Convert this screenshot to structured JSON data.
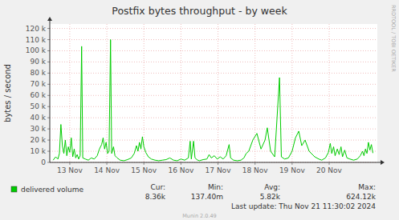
{
  "chart_data": {
    "type": "line",
    "title": "Postfix bytes throughput - by week",
    "y_label": "bytes / second",
    "x": [
      13.05,
      13.12,
      13.18,
      13.22,
      13.26,
      13.3,
      13.34,
      13.38,
      13.42,
      13.46,
      13.5,
      13.54,
      13.58,
      13.62,
      13.66,
      13.7,
      13.74,
      13.78,
      13.82,
      13.85,
      13.92,
      14.0,
      14.08,
      14.16,
      14.24,
      14.3,
      14.36,
      14.4,
      14.44,
      14.48,
      14.52,
      14.56,
      14.6,
      14.63,
      14.68,
      14.72,
      14.78,
      14.86,
      14.96,
      15.06,
      15.16,
      15.24,
      15.3,
      15.34,
      15.38,
      15.42,
      15.46,
      15.5,
      15.55,
      15.62,
      15.7,
      15.8,
      15.9,
      16.0,
      16.1,
      16.2,
      16.3,
      16.4,
      16.5,
      16.6,
      16.7,
      16.75,
      16.78,
      16.84,
      16.88,
      16.95,
      17.0,
      17.1,
      17.2,
      17.26,
      17.32,
      17.4,
      17.48,
      17.56,
      17.64,
      17.72,
      17.8,
      17.84,
      17.92,
      18.02,
      18.12,
      18.2,
      18.26,
      18.33,
      18.44,
      18.55,
      18.66,
      18.77,
      18.83,
      18.92,
      19.03,
      19.16,
      19.21,
      19.3,
      19.4,
      19.5,
      19.59,
      19.68,
      19.76,
      19.85,
      19.96,
      20.11,
      20.22,
      20.3,
      20.4,
      20.48,
      20.53,
      20.57,
      20.62,
      20.66,
      20.72,
      20.77,
      20.82,
      20.86,
      20.92,
      20.98,
      21.06,
      21.16,
      21.26,
      21.34,
      21.4,
      21.44,
      21.48,
      21.52,
      21.56,
      21.6,
      21.64,
      21.68
    ],
    "series": [
      {
        "name": "delivered volume",
        "color": "#00cc00",
        "values": [
          2000,
          5000,
          3000,
          8000,
          34000,
          15000,
          8000,
          20000,
          6000,
          14000,
          9000,
          22000,
          5000,
          12000,
          4000,
          7000,
          3000,
          6000,
          104000,
          4000,
          3000,
          2000,
          4000,
          3000,
          6000,
          12000,
          16000,
          22000,
          12000,
          18000,
          8000,
          10000,
          110000,
          8000,
          14000,
          6000,
          4000,
          2000,
          1500,
          2500,
          4000,
          8000,
          15000,
          10000,
          18000,
          12000,
          23000,
          14000,
          9000,
          5000,
          3000,
          2000,
          1500,
          2000,
          2500,
          4000,
          2000,
          1500,
          3000,
          2000,
          4000,
          19000,
          3000,
          19000,
          4000,
          2000,
          1500,
          2500,
          3000,
          7000,
          4000,
          6000,
          3000,
          5000,
          3000,
          6000,
          16000,
          4000,
          2000,
          1500,
          2000,
          4000,
          8000,
          10000,
          20000,
          26000,
          12000,
          20000,
          31000,
          10000,
          5000,
          76000,
          5000,
          3000,
          4000,
          10000,
          22000,
          28000,
          15000,
          20000,
          10000,
          5000,
          3000,
          2000,
          4000,
          9000,
          17000,
          8000,
          14000,
          6000,
          12000,
          7000,
          14000,
          5000,
          11000,
          4000,
          3000,
          2000,
          3000,
          6000,
          10000,
          6000,
          12000,
          8000,
          18000,
          11000,
          16000,
          8360
        ]
      }
    ],
    "xlim": [
      12.96,
      21.8
    ],
    "ylim": [
      0,
      124000
    ],
    "xticks": [
      {
        "value": 13.5,
        "label": "13 Nov"
      },
      {
        "value": 14.5,
        "label": "14 Nov"
      },
      {
        "value": 15.5,
        "label": "15 Nov"
      },
      {
        "value": 16.5,
        "label": "16 Nov"
      },
      {
        "value": 17.5,
        "label": "17 Nov"
      },
      {
        "value": 18.5,
        "label": "18 Nov"
      },
      {
        "value": 19.5,
        "label": "19 Nov"
      },
      {
        "value": 20.5,
        "label": "20 Nov"
      }
    ],
    "yticks": [
      0,
      {
        "value": 10000,
        "label": "10 k"
      },
      {
        "value": 20000,
        "label": "20 k"
      },
      {
        "value": 30000,
        "label": "30 k"
      },
      {
        "value": 40000,
        "label": "40 k"
      },
      {
        "value": 50000,
        "label": "50 k"
      },
      {
        "value": 60000,
        "label": "60 k"
      },
      {
        "value": 70000,
        "label": "70 k"
      },
      {
        "value": 80000,
        "label": "80 k"
      },
      {
        "value": 90000,
        "label": "90 k"
      },
      {
        "value": 100000,
        "label": "100 k"
      },
      {
        "value": 110000,
        "label": "110 k"
      },
      {
        "value": 120000,
        "label": "120 k"
      }
    ],
    "grid": true,
    "legend": "bottom-left",
    "stats": [
      {
        "label": "Cur:",
        "value": "8.36k"
      },
      {
        "label": "Min:",
        "value": "137.40m"
      },
      {
        "label": "Avg:",
        "value": "5.82k"
      },
      {
        "label": "Max:",
        "value": "624.12k"
      }
    ],
    "last_update": "Last update: Thu Nov 21 11:30:02 2024",
    "watermark": "RRDTOOL / TOBI OETIKER",
    "footer": "Munin 2.0.49"
  }
}
